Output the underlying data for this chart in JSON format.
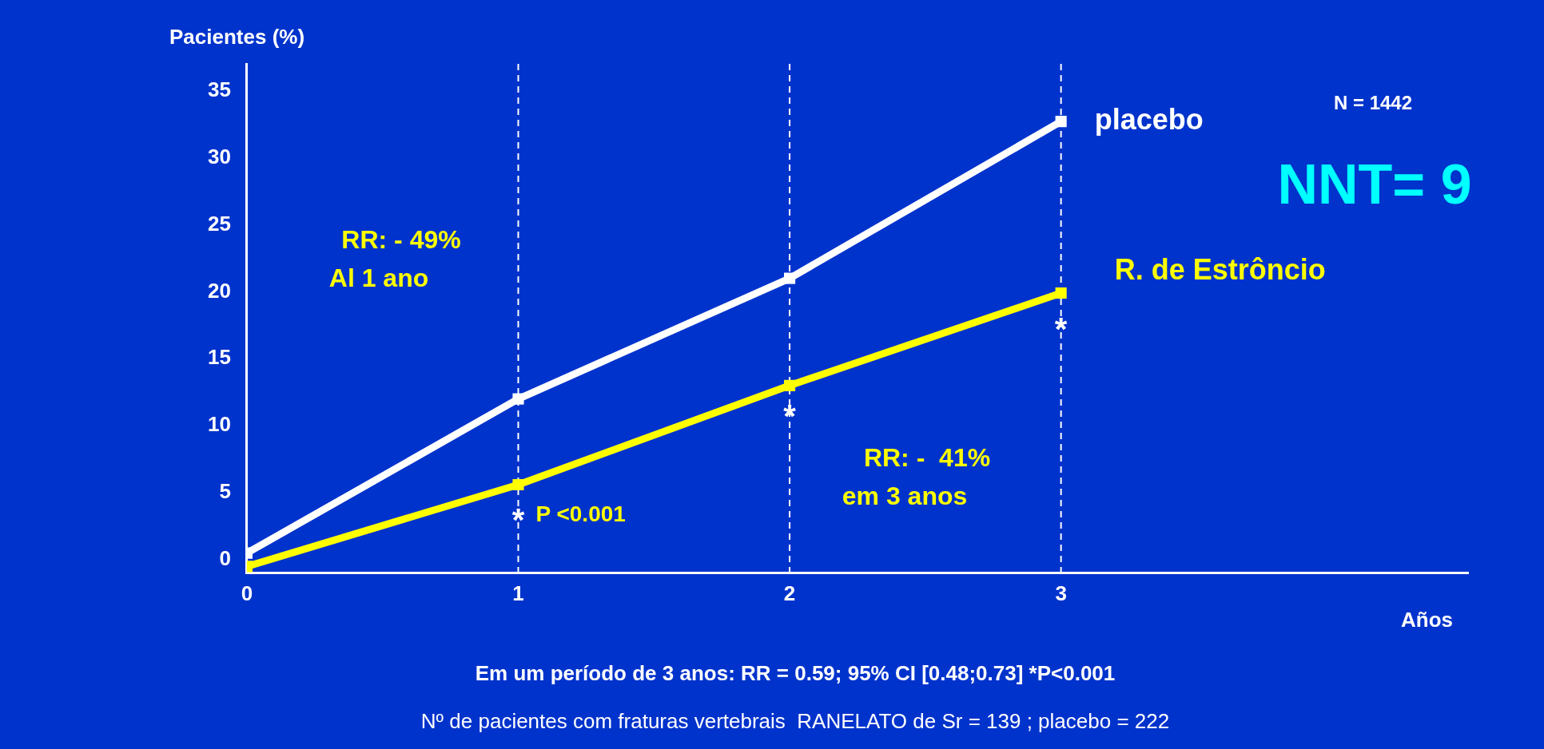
{
  "chart_data": {
    "type": "line",
    "ylabel": "Pacientes (%)",
    "xlabel": "Años",
    "x": [
      0,
      1,
      2,
      3
    ],
    "series": [
      {
        "name": "placebo",
        "color": "#ffffff",
        "values": [
          0.5,
          12,
          21,
          32.7
        ]
      },
      {
        "name": "R. de Estrôncio",
        "color": "#ffff00",
        "values": [
          -0.5,
          5.6,
          13,
          19.9
        ]
      }
    ],
    "xlim": [
      0,
      4.5
    ],
    "xticks": [
      0,
      1,
      2,
      3
    ],
    "ylim": [
      -1,
      37
    ],
    "yticks": [
      0,
      5,
      10,
      15,
      20,
      25,
      30,
      35
    ],
    "grid": false,
    "legend": false,
    "marker": "square",
    "line_style": "solid",
    "ref_lines": [
      {
        "axis": "x",
        "value": 1,
        "color": "#ffffff",
        "line_style": "dashed"
      },
      {
        "axis": "x",
        "value": 2,
        "color": "#ffffff",
        "line_style": "dashed"
      },
      {
        "axis": "x",
        "value": 3,
        "color": "#ffffff",
        "line_style": "dashed"
      }
    ],
    "annotations": [
      "N = 1442",
      "NNT= 9",
      "RR: - 49%\nAl 1 ano",
      "RR: -  41%\nem 3 anos",
      "Em um período de 3 anos: RR = 0.59; 95% CI [0.48;0.73] *P<0.001",
      "Nº de pacientes com fraturas vertebrais  RANELATO de Sr = 139 ; placebo = 222",
      {
        "text": "* P <0.001",
        "x": 1,
        "y": 3.3
      },
      {
        "text": "*",
        "x": 2,
        "y": 11
      },
      {
        "text": "*",
        "x": 3,
        "y": 17.5
      }
    ]
  }
}
